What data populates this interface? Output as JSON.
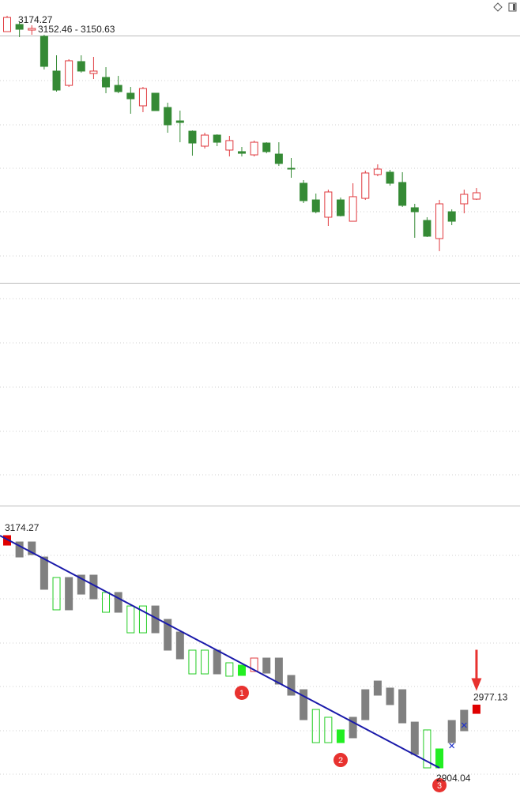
{
  "chart_data": [
    {
      "type": "candlestick",
      "readout": "3152.46 - 3150.63",
      "ylim": [
        2867.7,
        3192.4
      ],
      "up_color": "#e0393e",
      "down_color": "#358a35",
      "open": [
        3156.1,
        3164.3,
        3157.9,
        3150.7,
        3110.8,
        3094.4,
        3121.7,
        3108.0,
        3103.5,
        3094.4,
        3085.4,
        3070.9,
        3085.4,
        3069.0,
        3053.6,
        3041.8,
        3024.6,
        3037.3,
        3020.1,
        3018.3,
        3014.6,
        3028.2,
        3015.5,
        2999.2,
        2982.0,
        2962.9,
        2943.0,
        2962.9,
        2938.4,
        2964.7,
        2992.0,
        2994.7,
        2982.9,
        2953.9,
        2939.3,
        2918.5,
        2949.3,
        2958.4,
        2963.8
      ],
      "high": [
        3174.27,
        3167.0,
        3163.4,
        3152.5,
        3128.9,
        3124.4,
        3128.9,
        3127.1,
        3115.3,
        3105.3,
        3092.6,
        3092.6,
        3085.4,
        3074.5,
        3065.4,
        3042.7,
        3040.0,
        3038.2,
        3036.4,
        3023.7,
        3031.0,
        3029.1,
        3029.1,
        3011.0,
        2985.6,
        2970.2,
        2974.7,
        2965.6,
        2982.0,
        2996.5,
        3003.7,
        2997.4,
        2994.7,
        2958.4,
        2943.0,
        2962.9,
        2952.0,
        2974.7,
        2976.5
      ],
      "low": [
        3156.1,
        3149.8,
        3152.5,
        3112.6,
        3087.2,
        3092.6,
        3109.0,
        3101.7,
        3085.4,
        3085.4,
        3061.8,
        3063.6,
        3065.4,
        3040.0,
        3029.1,
        3013.7,
        3021.9,
        3024.6,
        3012.8,
        3012.8,
        3012.8,
        3016.4,
        3001.9,
        2988.3,
        2959.3,
        2947.5,
        2933.0,
        2943.9,
        2938.4,
        2962.9,
        2990.1,
        2979.3,
        2954.8,
        2919.4,
        2920.3,
        2904.04,
        2933.9,
        2947.5,
        2962.9
      ],
      "close": [
        3172.4,
        3158.8,
        3159.7,
        3116.2,
        3089.0,
        3122.6,
        3110.8,
        3110.8,
        3092.6,
        3087.2,
        3079.0,
        3090.8,
        3065.4,
        3049.1,
        3051.8,
        3028.2,
        3037.3,
        3029.1,
        3031.0,
        3016.4,
        3029.1,
        3018.3,
        3004.7,
        2998.3,
        2962.0,
        2949.3,
        2972.0,
        2944.8,
        2966.6,
        2993.8,
        2998.3,
        2982.0,
        2956.6,
        2949.3,
        2921.2,
        2958.4,
        2938.4,
        2969.3,
        2971.1
      ]
    },
    {
      "type": "range-bar",
      "ylim": [
        2878.3,
        3209.2
      ],
      "colors": {
        "gray": "#808080",
        "green-hollow": "#22cc22",
        "green-filled": "#22ee22",
        "red-hollow": "#e0393e",
        "red-filled": "#e00000"
      },
      "styles": [
        "red-filled",
        "gray",
        "gray",
        "gray",
        "green-hollow",
        "gray",
        "gray",
        "gray",
        "green-hollow",
        "gray",
        "green-hollow",
        "green-hollow",
        "gray",
        "gray",
        "gray",
        "green-hollow",
        "green-hollow",
        "gray",
        "green-hollow",
        "green-filled",
        "red-hollow",
        "gray",
        "gray",
        "gray",
        "gray",
        "green-hollow",
        "green-hollow",
        "green-filled",
        "gray",
        "gray",
        "gray",
        "gray",
        "gray",
        "gray",
        "green-hollow",
        "green-filled",
        "gray",
        "gray",
        "red-filled"
      ],
      "high": [
        3174.27,
        3166.9,
        3166.9,
        3149.4,
        3125.5,
        3125.5,
        3128.3,
        3128.3,
        3108.1,
        3108.1,
        3092.4,
        3092.4,
        3092.4,
        3076.8,
        3062.1,
        3041.0,
        3041.0,
        3041.0,
        3026.3,
        3023.5,
        3031.8,
        3031.8,
        3031.8,
        3011.6,
        2995.0,
        2972.0,
        2962.9,
        2948.2,
        2962.9,
        2995.0,
        3005.1,
        2996.9,
        2995.0,
        2957.3,
        2948.2,
        2926.1,
        2959.2,
        2971.1,
        2977.13
      ],
      "low": [
        3163.2,
        3149.4,
        3152.2,
        3111.8,
        3087.9,
        3087.9,
        3106.2,
        3100.7,
        3085.1,
        3085.1,
        3061.2,
        3061.2,
        3061.2,
        3041.0,
        3030.9,
        3013.4,
        3013.4,
        3013.4,
        3010.7,
        3011.6,
        3016.2,
        3014.3,
        3001.5,
        2988.6,
        2960.1,
        2933.4,
        2933.4,
        2933.4,
        2939.0,
        2960.1,
        2988.6,
        2977.6,
        2956.4,
        2919.7,
        2904.04,
        2904.04,
        2933.4,
        2947.2,
        2967.4
      ],
      "trendline": {
        "from": [
          0,
          3174.27
        ],
        "to": [
          35,
          2904.04
        ],
        "color": "#1a1aaa"
      },
      "cross_marks": [
        {
          "index": 36,
          "value": 2929.8
        },
        {
          "index": 37,
          "value": 2953.7
        }
      ],
      "markers": [
        {
          "index": 19,
          "label": "1"
        },
        {
          "index": 27,
          "label": "2"
        },
        {
          "index": 35,
          "label": "3"
        }
      ],
      "arrow_index": 38
    }
  ]
}
